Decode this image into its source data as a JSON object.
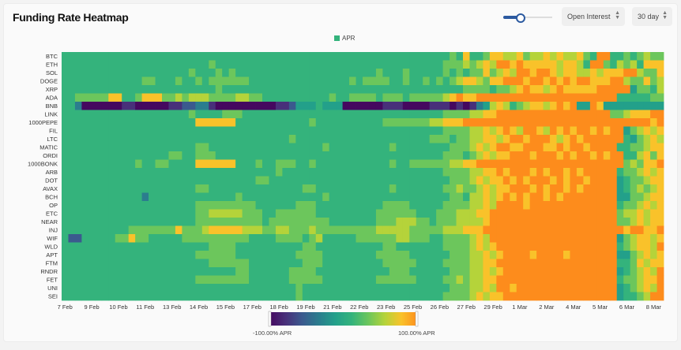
{
  "header": {
    "title": "Funding Rate Heatmap",
    "metric_select": "Open Interest",
    "period_select": "30 day",
    "slider_value": 0.3
  },
  "chart_data": {
    "type": "heatmap",
    "title": "Funding Rate Heatmap",
    "legend": [
      "APR"
    ],
    "legend_position": "top-center",
    "rows": [
      "BTC",
      "ETH",
      "SOL",
      "DOGE",
      "XRP",
      "ADA",
      "BNB",
      "LINK",
      "1000PEPE",
      "FIL",
      "LTC",
      "MATIC",
      "ORDI",
      "1000BONK",
      "ARB",
      "DOT",
      "AVAX",
      "BCH",
      "OP",
      "ETC",
      "NEAR",
      "INJ",
      "WIF",
      "WLD",
      "APT",
      "FTM",
      "RNDR",
      "FET",
      "UNI",
      "SEI"
    ],
    "x_tick_labels": [
      "7 Feb",
      "9 Feb",
      "10 Feb",
      "11 Feb",
      "13 Feb",
      "14 Feb",
      "15 Feb",
      "17 Feb",
      "18 Feb",
      "19 Feb",
      "21 Feb",
      "22 Feb",
      "23 Feb",
      "25 Feb",
      "26 Feb",
      "27 Feb",
      "29 Feb",
      "1 Mar",
      "2 Mar",
      "4 Mar",
      "5 Mar",
      "6 Mar",
      "8 Mar"
    ],
    "columns_per_tick": 4,
    "value_levels_apr_percent": [
      -100,
      -75,
      -50,
      -25,
      0,
      15,
      35,
      55,
      75,
      100
    ],
    "level_colors": [
      "#45085f",
      "#48307a",
      "#3b5a8e",
      "#2b7d8e",
      "#23a08a",
      "#34b37c",
      "#6cc65c",
      "#b5d33a",
      "#f9c22a",
      "#fd8c1c"
    ],
    "values_encoded": [
      "555555555555555555555555555555555555555555555555555555555565855688778677878778659955656766",
      "555555555555555555555565555555555555555555555555555555555666767879989888887887599657675888",
      "555555555555555555565556565555555555555555555556555655555656566867879989987887787888997668",
      "555555555555665556556566666655555555555555565666655655656567887688999899898989988899766867",
      "555555555555555555555556555555555555555555555555555555555555666656678988789888889999946657",
      "556666688556888667677766667766555555555565566665666566666789889999999999999999999995555566",
      "553000000110000011223310000000001124445444000000111000011101013478756788789894498444444444",
      "555555555555555555565555666555555555555555555555555555555666677889999999999999999966788899",
      "555555555555555555558888885555555555565555555555666666677888999999999999999999999999999989",
      "555555555555555555555555555555555555555555555555555555555666677878987998798989989899467878",
      "555555555555555555555555555555555565555555555555555555566656677887899899987898999999546787",
      "555555555555555555556655555555555555555655555555565555555566678789988999889899899995566788",
      "555555555555555566556665555555555555555555555555555555555666567878899989998989989899557868",
      "555555555556556655558888885556556665565555555555565566666677889999999999999999999999676889",
      "555555555555555555555555555555556555555555555555555555555666677889899989899898999995667878",
      "555555555555555555555555555556655555555555555555555555555566678788989899989899899994566788",
      "555555555555555555556655555555555555665555555555565555555667667878899989899898999994567678",
      "555555555555355555555555556555555555555655555555555555555566577878989899898999999994466788",
      "555555555555555555556666666665555556665555555555666655555666677879999899999999999995667878",
      "555555555555555555556677777666556666665555555556666665556667778899999999999999999996778788",
      "555555555555555555556666666666566666666655555556667776656667777899999999999999999996678788",
      "555555555566666668666788888777667766676666666667777766666777888999999999999999999999899889",
      "522555556686655555666666666655556666567555556666667766655666678799999999999999999994678878",
      "555555555555555555555566665555555555665555555555665555555666678789999999999999999995678879",
      "555555555555555555556666665555555556666555555556666655555566677878999989999899999994467878",
      "555555555555555555555566666655555555666555555555666665555666677889999999999999999995568788",
      "555555555555555555555555556655555566665555555555566655555566677878999999999999999994567879",
      "555555555555555555556666666655555566666555555556666665555667677889999999999999999995667889",
      "555555555555555555555555555555555556555555555555555555555566677879989999999999999994567879",
      "555555555555555555555555555555555556555555555555555555555666678788999999999999999994556799"
    ],
    "colorbar": {
      "min_label": "-100.00% APR",
      "max_label": "100.00% APR",
      "range": [
        -100,
        100
      ]
    }
  }
}
